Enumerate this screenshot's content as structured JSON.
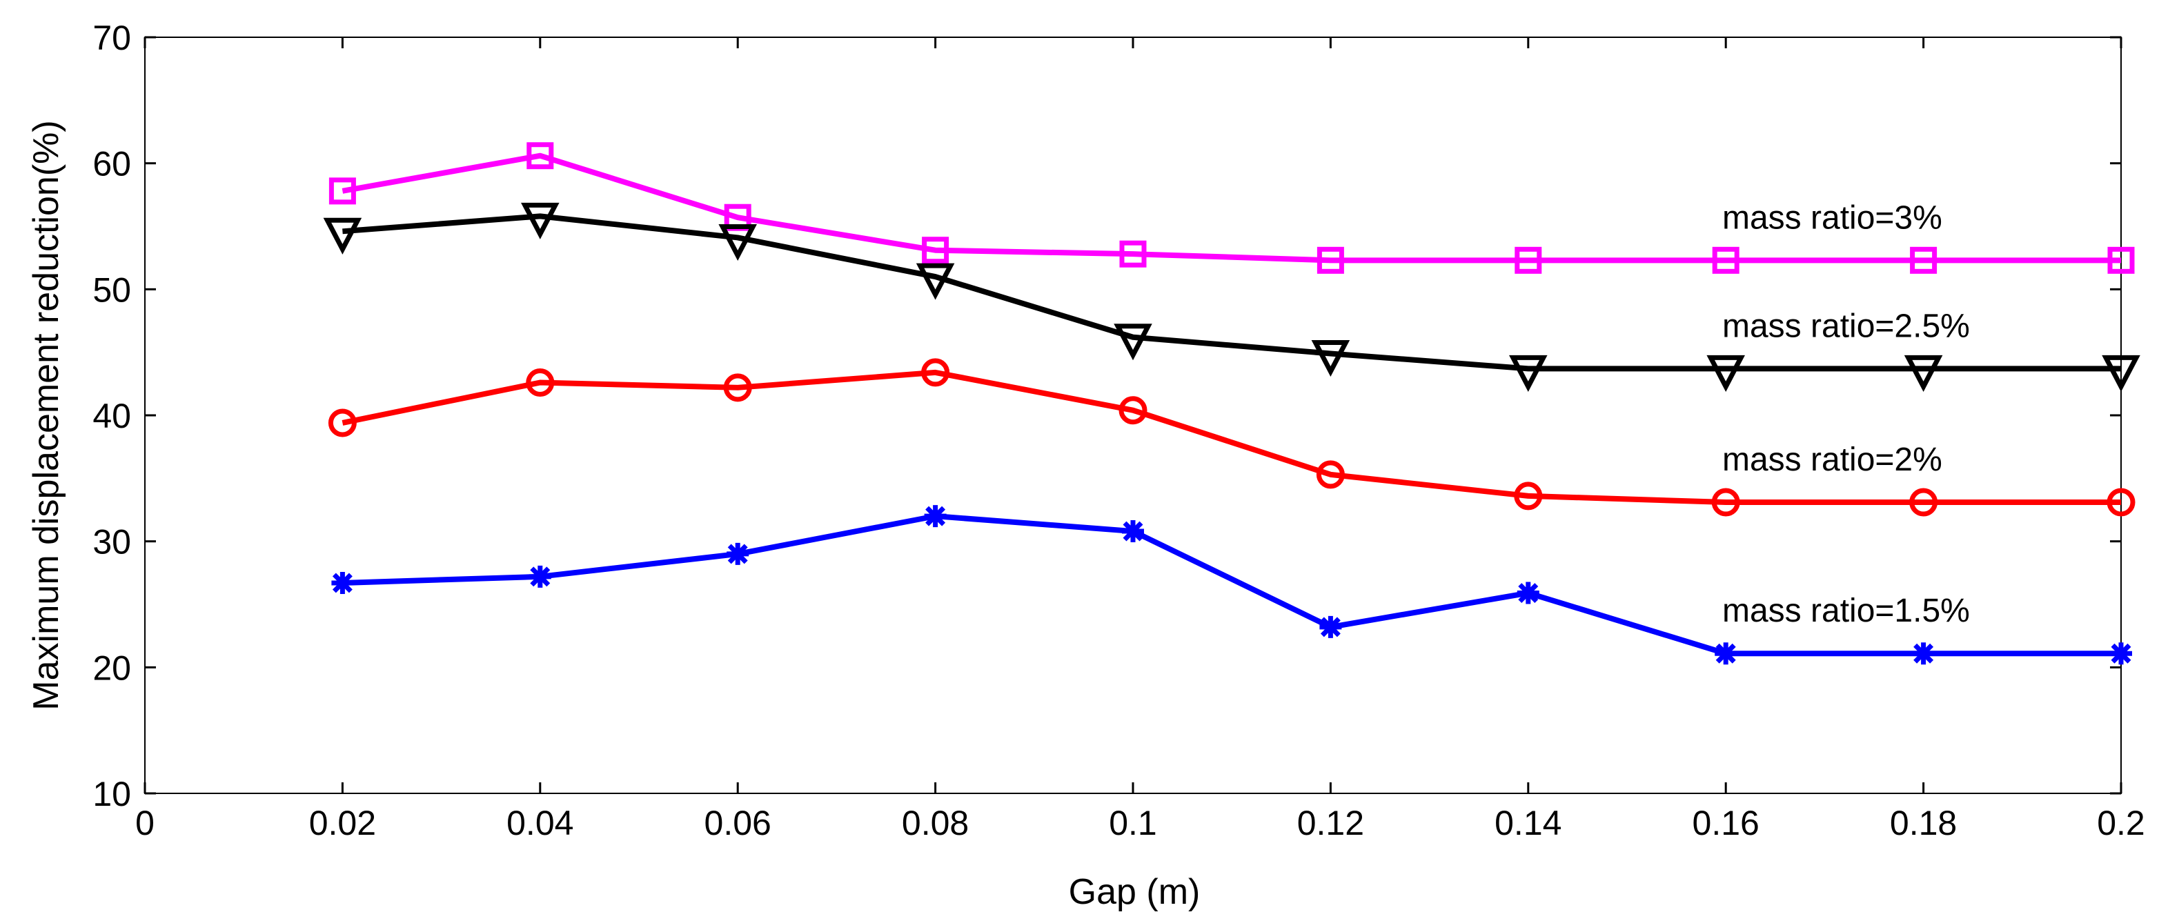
{
  "chart_data": {
    "type": "line",
    "title": "",
    "xlabel": "Gap (m)",
    "ylabel": "Maximum displacement reduction(%)",
    "xlim": [
      0,
      0.2
    ],
    "ylim": [
      10,
      70
    ],
    "xticks": [
      "0",
      "0.02",
      "0.04",
      "0.06",
      "0.08",
      "0.1",
      "0.12",
      "0.14",
      "0.16",
      "0.18",
      "0.2"
    ],
    "yticks": [
      "10",
      "20",
      "30",
      "40",
      "50",
      "60",
      "70"
    ],
    "grid": false,
    "x": [
      0.02,
      0.04,
      0.06,
      0.08,
      0.1,
      0.12,
      0.14,
      0.16,
      0.18,
      0.2
    ],
    "series": [
      {
        "name": "mass ratio=3%",
        "color": "#ff00ff",
        "marker": "square",
        "values": [
          57.8,
          60.6,
          55.7,
          53.1,
          52.8,
          52.3,
          52.3,
          52.3,
          52.3,
          52.3
        ]
      },
      {
        "name": "mass ratio=2.5%",
        "color": "#000000",
        "marker": "triangle-down",
        "values": [
          54.6,
          55.8,
          54.1,
          51.0,
          46.2,
          44.9,
          43.7,
          43.7,
          43.7,
          43.7
        ]
      },
      {
        "name": "mass ratio=2%",
        "color": "#ff0000",
        "marker": "circle",
        "values": [
          39.4,
          42.6,
          42.2,
          43.4,
          40.4,
          35.3,
          33.6,
          33.1,
          33.1,
          33.1
        ]
      },
      {
        "name": "mass ratio=1.5%",
        "color": "#0000ff",
        "marker": "star",
        "values": [
          26.7,
          27.2,
          29.0,
          32.0,
          30.8,
          23.2,
          25.9,
          21.1,
          21.1,
          21.1
        ]
      }
    ]
  }
}
